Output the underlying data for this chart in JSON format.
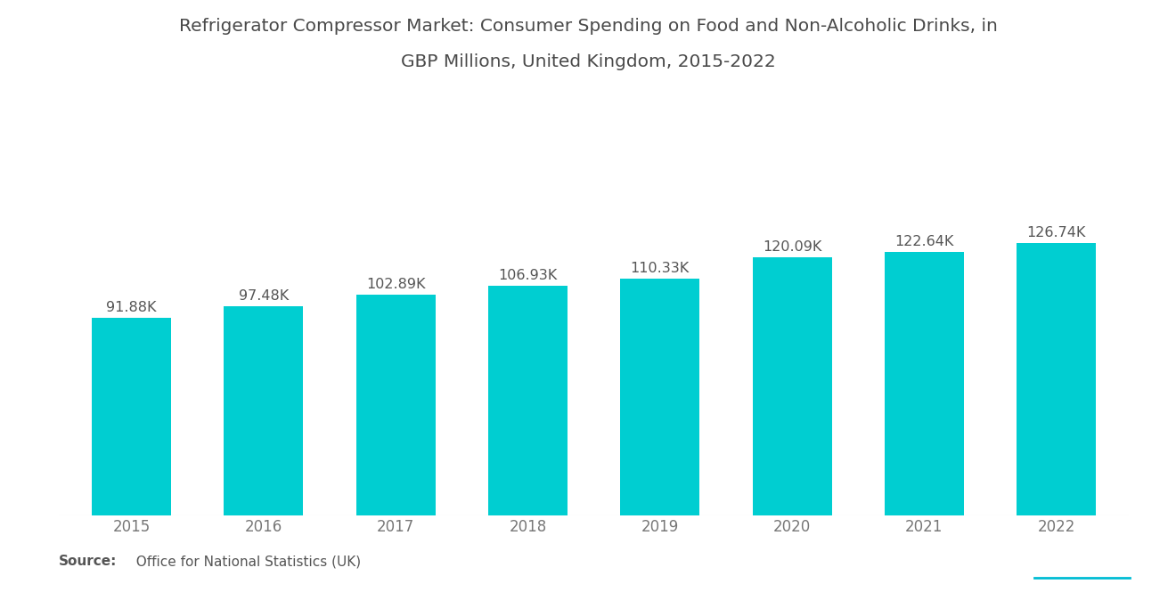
{
  "title_line1": "Refrigerator Compressor Market: Consumer Spending on Food and Non-Alcoholic Drinks, in",
  "title_line2": "GBP Millions, United Kingdom, 2015-2022",
  "categories": [
    "2015",
    "2016",
    "2017",
    "2018",
    "2019",
    "2020",
    "2021",
    "2022"
  ],
  "values": [
    91.88,
    97.48,
    102.89,
    106.93,
    110.33,
    120.09,
    122.64,
    126.74
  ],
  "labels": [
    "91.88K",
    "97.48K",
    "102.89K",
    "106.93K",
    "110.33K",
    "120.09K",
    "122.64K",
    "126.74K"
  ],
  "bar_color": "#00CED1",
  "background_color": "#ffffff",
  "title_color": "#4a4a4a",
  "label_color": "#555555",
  "tick_color": "#777777",
  "source_bold": "Source:",
  "source_text": "  Office for National Statistics (UK)",
  "ylim": [
    0,
    160
  ],
  "title_fontsize": 14.5,
  "label_fontsize": 11.5,
  "tick_fontsize": 12,
  "source_fontsize": 11
}
